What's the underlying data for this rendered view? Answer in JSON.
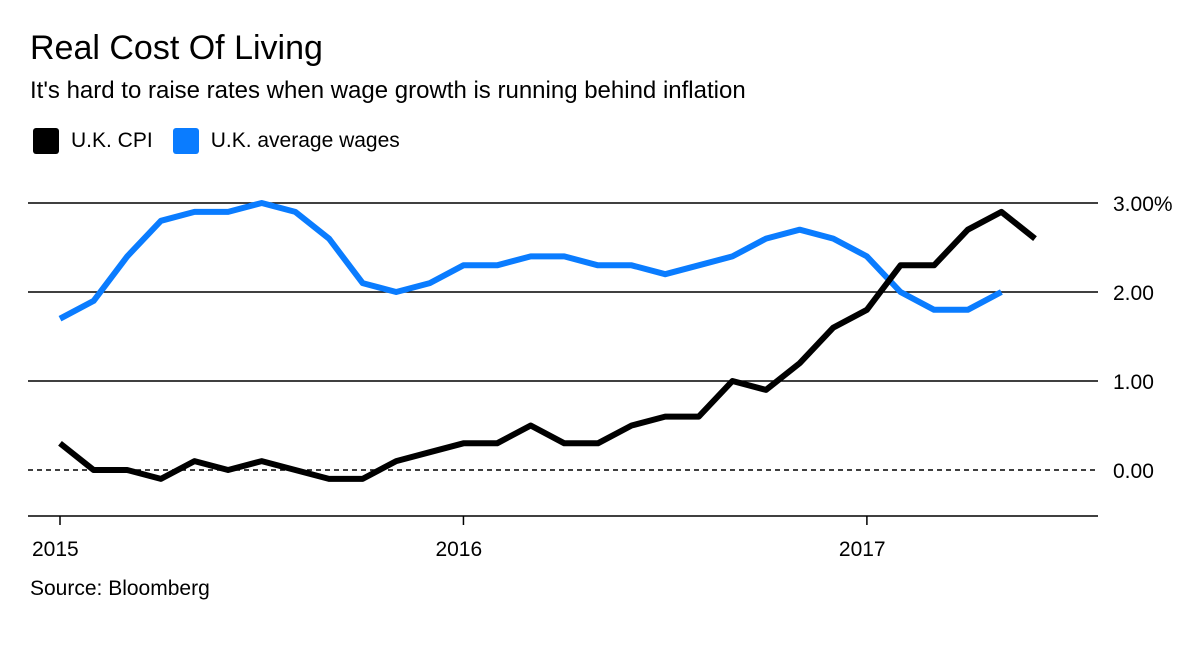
{
  "title": "Real Cost Of Living",
  "subtitle": "It's hard to raise rates when wage growth is running behind inflation",
  "source": "Source: Bloomberg",
  "colors": {
    "cpi": "#000000",
    "wages": "#0a7cff"
  },
  "chart_data": {
    "type": "line",
    "title": "Real Cost Of Living",
    "subtitle": "It's hard to raise rates when wage growth is running behind inflation",
    "xlabel": "",
    "ylabel": "",
    "ylim": [
      -0.5,
      3.0
    ],
    "xlim": [
      "2015-01",
      "2017-08"
    ],
    "x_ticks": [
      "2015",
      "2016",
      "2017"
    ],
    "y_ticks": [
      {
        "value": 3.0,
        "label": "3.00%"
      },
      {
        "value": 2.0,
        "label": "2.00"
      },
      {
        "value": 1.0,
        "label": "1.00"
      },
      {
        "value": 0.0,
        "label": "0.00"
      }
    ],
    "legend_placement": "top-left",
    "series": [
      {
        "name": "U.K. CPI",
        "color": "#000000",
        "start": "2015-01",
        "values": [
          0.3,
          0.0,
          0.0,
          -0.1,
          0.1,
          0.0,
          0.1,
          0.0,
          -0.1,
          -0.1,
          0.1,
          0.2,
          0.3,
          0.3,
          0.5,
          0.3,
          0.3,
          0.5,
          0.6,
          0.6,
          1.0,
          0.9,
          1.2,
          1.6,
          1.8,
          2.3,
          2.3,
          2.7,
          2.9,
          2.6
        ]
      },
      {
        "name": "U.K. average wages",
        "color": "#0a7cff",
        "start": "2015-01",
        "values": [
          1.7,
          1.9,
          2.4,
          2.8,
          2.9,
          2.9,
          3.0,
          2.9,
          2.6,
          2.1,
          2.0,
          2.1,
          2.3,
          2.3,
          2.4,
          2.4,
          2.3,
          2.3,
          2.2,
          2.3,
          2.4,
          2.6,
          2.7,
          2.6,
          2.4,
          2.0,
          1.8,
          1.8,
          2.0
        ]
      }
    ]
  }
}
